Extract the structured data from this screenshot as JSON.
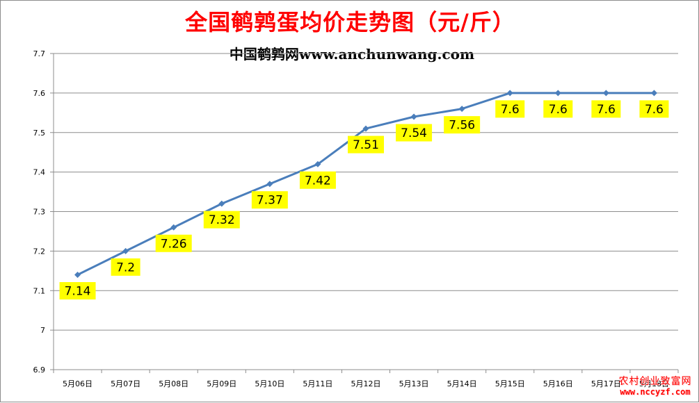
{
  "chart_data": {
    "type": "line",
    "title": "全国鹌鹑蛋均价走势图（元/斤）",
    "subtitle": "中国鹌鹑网www.anchunwang.com",
    "categories": [
      "5月06日",
      "5月07日",
      "5月08日",
      "5月09日",
      "5月10日",
      "5月11日",
      "5月12日",
      "5月13日",
      "5月14日",
      "5月15日",
      "5月16日",
      "5月17日",
      "5月18日"
    ],
    "series": [
      {
        "values": [
          7.14,
          7.2,
          7.26,
          7.32,
          7.37,
          7.42,
          7.51,
          7.54,
          7.56,
          7.6,
          7.6,
          7.6,
          7.6
        ]
      }
    ],
    "data_labels": [
      "7.14",
      "7.2",
      "7.26",
      "7.32",
      "7.37",
      "7.42",
      "7.51",
      "7.54",
      "7.56",
      "7.6",
      "7.6",
      "7.6",
      "7.6"
    ],
    "y_ticks": [
      "6.9",
      "7",
      "7.1",
      "7.2",
      "7.3",
      "7.4",
      "7.5",
      "7.6",
      "7.7"
    ],
    "ylim": [
      6.9,
      7.7
    ],
    "xlabel": "",
    "ylabel": "",
    "grid": true,
    "legend": "none",
    "colors": {
      "line": "#4a7ebb",
      "label_bg": "#ffff00",
      "title": "#ff0000",
      "grid": "#8c8c8c"
    }
  },
  "watermark": {
    "name": "农村创业致富网",
    "url": "www.nccyzf.com"
  }
}
